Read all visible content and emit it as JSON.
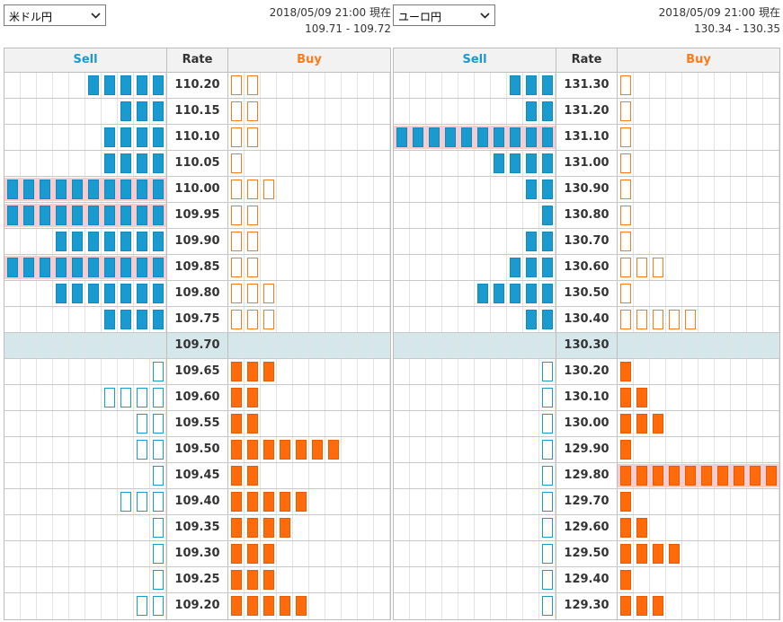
{
  "colors": {
    "sell": "#1a9bd0",
    "buy": "#ff6a0a",
    "current_row": "#d6e7ec",
    "highlight": "#f5cdd1"
  },
  "panels": [
    {
      "pair": "米ドル円",
      "timestamp": "2018/05/09 21:00 現在",
      "quote": "109.71 - 109.72",
      "headers": {
        "sell": "Sell",
        "rate": "Rate",
        "buy": "Buy"
      },
      "rows": [
        {
          "rate": "110.20",
          "sell_fill": 5,
          "sell_hollow": 0,
          "buy_fill": 0,
          "buy_hollow": 2
        },
        {
          "rate": "110.15",
          "sell_fill": 3,
          "sell_hollow": 0,
          "buy_fill": 0,
          "buy_hollow": 2
        },
        {
          "rate": "110.10",
          "sell_fill": 4,
          "sell_hollow": 0,
          "buy_fill": 0,
          "buy_hollow": 2
        },
        {
          "rate": "110.05",
          "sell_fill": 4,
          "sell_hollow": 0,
          "buy_fill": 0,
          "buy_hollow": 1
        },
        {
          "rate": "110.00",
          "sell_fill": 10,
          "sell_hollow": 0,
          "buy_fill": 0,
          "buy_hollow": 3,
          "sell_hl": true
        },
        {
          "rate": "109.95",
          "sell_fill": 10,
          "sell_hollow": 0,
          "buy_fill": 0,
          "buy_hollow": 2,
          "sell_hl": true
        },
        {
          "rate": "109.90",
          "sell_fill": 7,
          "sell_hollow": 0,
          "buy_fill": 0,
          "buy_hollow": 2
        },
        {
          "rate": "109.85",
          "sell_fill": 10,
          "sell_hollow": 0,
          "buy_fill": 0,
          "buy_hollow": 2,
          "sell_hl": true
        },
        {
          "rate": "109.80",
          "sell_fill": 7,
          "sell_hollow": 0,
          "buy_fill": 0,
          "buy_hollow": 3
        },
        {
          "rate": "109.75",
          "sell_fill": 4,
          "sell_hollow": 0,
          "buy_fill": 0,
          "buy_hollow": 3
        },
        {
          "rate": "109.70",
          "sell_fill": 0,
          "sell_hollow": 0,
          "buy_fill": 0,
          "buy_hollow": 0,
          "current": true
        },
        {
          "rate": "109.65",
          "sell_fill": 0,
          "sell_hollow": 1,
          "buy_fill": 3,
          "buy_hollow": 0
        },
        {
          "rate": "109.60",
          "sell_fill": 0,
          "sell_hollow": 4,
          "buy_fill": 2,
          "buy_hollow": 0
        },
        {
          "rate": "109.55",
          "sell_fill": 0,
          "sell_hollow": 2,
          "buy_fill": 2,
          "buy_hollow": 0
        },
        {
          "rate": "109.50",
          "sell_fill": 0,
          "sell_hollow": 2,
          "buy_fill": 7,
          "buy_hollow": 0
        },
        {
          "rate": "109.45",
          "sell_fill": 0,
          "sell_hollow": 1,
          "buy_fill": 2,
          "buy_hollow": 0
        },
        {
          "rate": "109.40",
          "sell_fill": 0,
          "sell_hollow": 3,
          "buy_fill": 5,
          "buy_hollow": 0
        },
        {
          "rate": "109.35",
          "sell_fill": 0,
          "sell_hollow": 1,
          "buy_fill": 4,
          "buy_hollow": 0
        },
        {
          "rate": "109.30",
          "sell_fill": 0,
          "sell_hollow": 1,
          "buy_fill": 3,
          "buy_hollow": 0
        },
        {
          "rate": "109.25",
          "sell_fill": 0,
          "sell_hollow": 1,
          "buy_fill": 3,
          "buy_hollow": 0
        },
        {
          "rate": "109.20",
          "sell_fill": 0,
          "sell_hollow": 2,
          "buy_fill": 5,
          "buy_hollow": 0
        }
      ]
    },
    {
      "pair": "ユーロ円",
      "timestamp": "2018/05/09 21:00 現在",
      "quote": "130.34 - 130.35",
      "headers": {
        "sell": "Sell",
        "rate": "Rate",
        "buy": "Buy"
      },
      "rows": [
        {
          "rate": "131.30",
          "sell_fill": 3,
          "sell_hollow": 0,
          "buy_fill": 0,
          "buy_hollow": 1
        },
        {
          "rate": "131.20",
          "sell_fill": 2,
          "sell_hollow": 0,
          "buy_fill": 0,
          "buy_hollow": 1
        },
        {
          "rate": "131.10",
          "sell_fill": 10,
          "sell_hollow": 0,
          "buy_fill": 0,
          "buy_hollow": 1,
          "sell_hl": true
        },
        {
          "rate": "131.00",
          "sell_fill": 4,
          "sell_hollow": 0,
          "buy_fill": 0,
          "buy_hollow": 1
        },
        {
          "rate": "130.90",
          "sell_fill": 2,
          "sell_hollow": 0,
          "buy_fill": 0,
          "buy_hollow": 1
        },
        {
          "rate": "130.80",
          "sell_fill": 1,
          "sell_hollow": 0,
          "buy_fill": 0,
          "buy_hollow": 1
        },
        {
          "rate": "130.70",
          "sell_fill": 2,
          "sell_hollow": 0,
          "buy_fill": 0,
          "buy_hollow": 1
        },
        {
          "rate": "130.60",
          "sell_fill": 3,
          "sell_hollow": 0,
          "buy_fill": 0,
          "buy_hollow": 3
        },
        {
          "rate": "130.50",
          "sell_fill": 5,
          "sell_hollow": 0,
          "buy_fill": 0,
          "buy_hollow": 1
        },
        {
          "rate": "130.40",
          "sell_fill": 2,
          "sell_hollow": 0,
          "buy_fill": 0,
          "buy_hollow": 5
        },
        {
          "rate": "130.30",
          "sell_fill": 0,
          "sell_hollow": 0,
          "buy_fill": 0,
          "buy_hollow": 0,
          "current": true
        },
        {
          "rate": "130.20",
          "sell_fill": 0,
          "sell_hollow": 1,
          "buy_fill": 1,
          "buy_hollow": 0
        },
        {
          "rate": "130.10",
          "sell_fill": 0,
          "sell_hollow": 1,
          "buy_fill": 2,
          "buy_hollow": 0
        },
        {
          "rate": "130.00",
          "sell_fill": 0,
          "sell_hollow": 1,
          "buy_fill": 3,
          "buy_hollow": 0
        },
        {
          "rate": "129.90",
          "sell_fill": 0,
          "sell_hollow": 1,
          "buy_fill": 1,
          "buy_hollow": 0
        },
        {
          "rate": "129.80",
          "sell_fill": 0,
          "sell_hollow": 1,
          "buy_fill": 10,
          "buy_hollow": 0,
          "buy_hl": true
        },
        {
          "rate": "129.70",
          "sell_fill": 0,
          "sell_hollow": 1,
          "buy_fill": 1,
          "buy_hollow": 0
        },
        {
          "rate": "129.60",
          "sell_fill": 0,
          "sell_hollow": 1,
          "buy_fill": 2,
          "buy_hollow": 0
        },
        {
          "rate": "129.50",
          "sell_fill": 0,
          "sell_hollow": 1,
          "buy_fill": 4,
          "buy_hollow": 0
        },
        {
          "rate": "129.40",
          "sell_fill": 0,
          "sell_hollow": 1,
          "buy_fill": 1,
          "buy_hollow": 0
        },
        {
          "rate": "129.30",
          "sell_fill": 0,
          "sell_hollow": 1,
          "buy_fill": 3,
          "buy_hollow": 0
        }
      ]
    }
  ]
}
